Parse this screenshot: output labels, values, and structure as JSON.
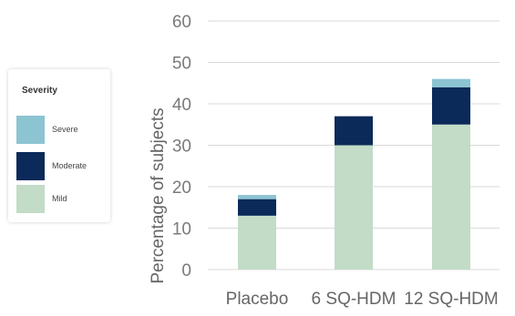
{
  "chart_data": {
    "type": "bar",
    "stacked": true,
    "categories": [
      "Placebo",
      "6 SQ-HDM",
      "12 SQ-HDM"
    ],
    "series": [
      {
        "name": "Mild",
        "values": [
          13,
          30,
          35
        ],
        "color": "#c2dcc7"
      },
      {
        "name": "Moderate",
        "values": [
          4,
          7,
          9
        ],
        "color": "#0b2a5a"
      },
      {
        "name": "Severe",
        "values": [
          1,
          0,
          2
        ],
        "color": "#8cc4d2"
      }
    ],
    "ylabel": "Percentage of subjects",
    "ylim": [
      0,
      60
    ],
    "yticks": [
      0,
      10,
      20,
      30,
      40,
      50,
      60
    ],
    "grid": true,
    "legend": {
      "title": "Severity",
      "position": "left",
      "order": [
        "Severe",
        "Moderate",
        "Mild"
      ]
    }
  }
}
